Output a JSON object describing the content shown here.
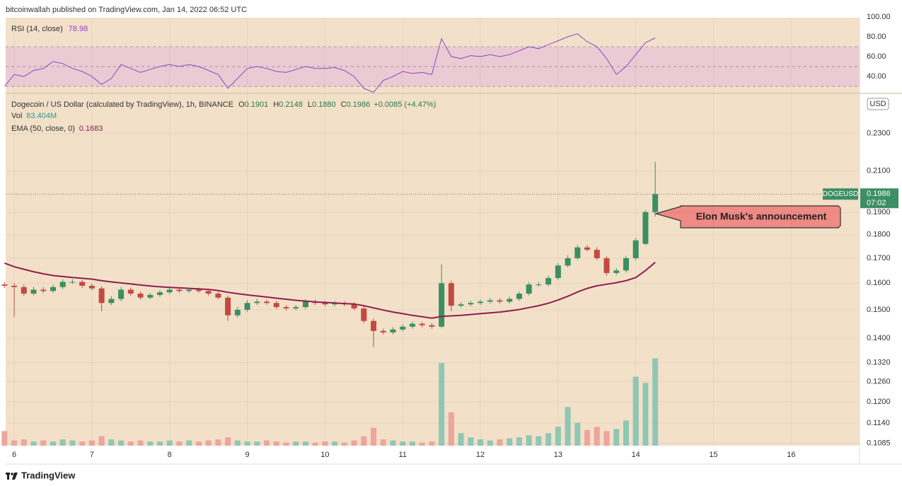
{
  "header": {
    "published": "bitcoinwallah published on TradingView.com, Jan 14, 2022 06:52 UTC"
  },
  "chart_data": {
    "type": "candlestick",
    "title": "Dogecoin / US Dollar (calculated by TradingView), 1h, BINANCE",
    "ohlc_readout": [
      {
        "label": "O",
        "value": "0.1901"
      },
      {
        "label": "H",
        "value": "0.2148"
      },
      {
        "label": "L",
        "value": "0.1880"
      },
      {
        "label": "C",
        "value": "0.1986"
      }
    ],
    "change": "+0.0085 (+4.47%)",
    "symbol": "DOGEUSD",
    "currency": "USD",
    "countdown": "07:02",
    "up_color": "#3b8f63",
    "down_color": "#c24a42",
    "grid": true,
    "log_scale": true,
    "xlim": [
      5.89,
      16.88
    ],
    "xticks": [
      6,
      7,
      8,
      9,
      10,
      11,
      12,
      13,
      14,
      15,
      16
    ],
    "ylim": [
      0.1079,
      0.2535
    ],
    "yticks": [
      0.1085,
      {
        "value": 0.114,
        "label": "0.1140"
      },
      {
        "value": 0.12,
        "label": "0.1200"
      },
      {
        "value": 0.126,
        "label": "0.1260"
      },
      {
        "value": 0.132,
        "label": "0.1320"
      },
      {
        "value": 0.14,
        "label": "0.1400"
      },
      {
        "value": 0.15,
        "label": "0.1500"
      },
      {
        "value": 0.16,
        "label": "0.1600"
      },
      {
        "value": 0.17,
        "label": "0.1700"
      },
      {
        "value": 0.18,
        "label": "0.1800"
      },
      {
        "value": 0.19,
        "label": "0.1900"
      },
      {
        "value": 0.21,
        "label": "0.2100"
      },
      {
        "value": 0.23,
        "label": "0.2300"
      }
    ],
    "x": [
      5.875,
      6,
      6.125,
      6.25,
      6.375,
      6.5,
      6.625,
      6.75,
      6.875,
      7,
      7.125,
      7.25,
      7.375,
      7.5,
      7.625,
      7.75,
      7.875,
      8,
      8.125,
      8.25,
      8.375,
      8.5,
      8.625,
      8.75,
      8.875,
      9,
      9.125,
      9.25,
      9.375,
      9.5,
      9.625,
      9.75,
      9.875,
      10,
      10.125,
      10.25,
      10.375,
      10.5,
      10.625,
      10.75,
      10.875,
      11,
      11.125,
      11.25,
      11.375,
      11.5,
      11.625,
      11.75,
      11.875,
      12,
      12.125,
      12.25,
      12.375,
      12.5,
      12.625,
      12.75,
      12.875,
      13,
      13.125,
      13.25,
      13.375,
      13.5,
      13.625,
      13.75,
      13.875,
      14,
      14.125,
      14.25
    ],
    "open": [
      0.1595,
      0.159,
      0.1585,
      0.156,
      0.1575,
      0.157,
      0.1585,
      0.1605,
      0.1605,
      0.159,
      0.158,
      0.1525,
      0.154,
      0.1575,
      0.156,
      0.1545,
      0.1555,
      0.1565,
      0.1575,
      0.157,
      0.1575,
      0.157,
      0.156,
      0.1545,
      0.148,
      0.15,
      0.1525,
      0.153,
      0.1525,
      0.151,
      0.1505,
      0.151,
      0.153,
      0.1525,
      0.152,
      0.1525,
      0.152,
      0.1505,
      0.146,
      0.1425,
      0.142,
      0.143,
      0.144,
      0.145,
      0.1445,
      0.144,
      0.16,
      0.1515,
      0.152,
      0.1525,
      0.153,
      0.1535,
      0.153,
      0.154,
      0.156,
      0.1595,
      0.1595,
      0.162,
      0.167,
      0.17,
      0.1745,
      0.1735,
      0.17,
      0.164,
      0.165,
      0.17,
      0.176,
      0.1901
    ],
    "high": [
      0.1605,
      0.16,
      0.1595,
      0.1585,
      0.1585,
      0.1595,
      0.1615,
      0.1615,
      0.1612,
      0.1598,
      0.1588,
      0.155,
      0.1585,
      0.1583,
      0.1568,
      0.1563,
      0.1573,
      0.1583,
      0.1583,
      0.1583,
      0.1582,
      0.1578,
      0.1568,
      0.1553,
      0.151,
      0.1535,
      0.154,
      0.1538,
      0.1533,
      0.1518,
      0.1518,
      0.1538,
      0.1538,
      0.1532,
      0.1533,
      0.1532,
      0.1528,
      0.1513,
      0.1468,
      0.1433,
      0.1438,
      0.1448,
      0.1458,
      0.1457,
      0.1453,
      0.1675,
      0.161,
      0.1528,
      0.1533,
      0.1538,
      0.1543,
      0.1543,
      0.1548,
      0.1568,
      0.1605,
      0.1605,
      0.163,
      0.168,
      0.1712,
      0.1755,
      0.1755,
      0.1745,
      0.1708,
      0.166,
      0.171,
      0.1785,
      0.191,
      0.2148
    ],
    "low": [
      0.1582,
      0.1475,
      0.1552,
      0.1553,
      0.1562,
      0.1563,
      0.1578,
      0.1597,
      0.1582,
      0.1572,
      0.1495,
      0.1517,
      0.1532,
      0.1552,
      0.1537,
      0.1538,
      0.1548,
      0.1558,
      0.1563,
      0.1563,
      0.1563,
      0.1553,
      0.1538,
      0.146,
      0.1472,
      0.1493,
      0.1518,
      0.1518,
      0.1503,
      0.1498,
      0.1498,
      0.1503,
      0.1518,
      0.1513,
      0.1513,
      0.1513,
      0.1498,
      0.1452,
      0.137,
      0.1413,
      0.1413,
      0.1423,
      0.1433,
      0.1438,
      0.1433,
      0.1435,
      0.1495,
      0.1508,
      0.1513,
      0.1518,
      0.1523,
      0.1523,
      0.1523,
      0.1533,
      0.1553,
      0.1587,
      0.1588,
      0.1612,
      0.1662,
      0.1693,
      0.1728,
      0.1692,
      0.163,
      0.1632,
      0.1642,
      0.1692,
      0.1755,
      0.188
    ],
    "close": [
      0.159,
      0.1585,
      0.156,
      0.1575,
      0.157,
      0.1585,
      0.1605,
      0.1605,
      0.159,
      0.158,
      0.1525,
      0.154,
      0.1575,
      0.156,
      0.1545,
      0.1555,
      0.1565,
      0.1575,
      0.157,
      0.1575,
      0.157,
      0.156,
      0.1545,
      0.148,
      0.15,
      0.1525,
      0.153,
      0.1525,
      0.151,
      0.1505,
      0.151,
      0.153,
      0.1525,
      0.152,
      0.1525,
      0.152,
      0.1505,
      0.146,
      0.1425,
      0.142,
      0.143,
      0.144,
      0.145,
      0.1445,
      0.144,
      0.16,
      0.1515,
      0.152,
      0.1525,
      0.153,
      0.1535,
      0.153,
      0.154,
      0.156,
      0.1595,
      0.1595,
      0.162,
      0.167,
      0.17,
      0.1745,
      0.1735,
      0.17,
      0.164,
      0.165,
      0.17,
      0.1775,
      0.1901,
      0.1986
    ],
    "ema": {
      "name": "EMA (50, close, 0)",
      "color": "#8e1f4f",
      "values": [
        0.168,
        0.1665,
        0.1655,
        0.1645,
        0.1637,
        0.163,
        0.1626,
        0.1622,
        0.1619,
        0.1616,
        0.161,
        0.1605,
        0.1601,
        0.1597,
        0.1593,
        0.1589,
        0.1586,
        0.1584,
        0.1582,
        0.158,
        0.1578,
        0.1576,
        0.1572,
        0.1565,
        0.156,
        0.1555,
        0.1551,
        0.1547,
        0.1543,
        0.1539,
        0.1535,
        0.1532,
        0.1529,
        0.1527,
        0.1525,
        0.1523,
        0.1521,
        0.1515,
        0.1507,
        0.1499,
        0.1492,
        0.1486,
        0.148,
        0.1475,
        0.147,
        0.1476,
        0.1478,
        0.148,
        0.1483,
        0.1486,
        0.1489,
        0.1492,
        0.1496,
        0.1501,
        0.1508,
        0.1515,
        0.1524,
        0.1536,
        0.155,
        0.1566,
        0.158,
        0.159,
        0.1596,
        0.1602,
        0.161,
        0.1622,
        0.165,
        0.1683
      ]
    },
    "volume": {
      "name": "Vol",
      "last_label": "83.404M",
      "ylim": [
        0,
        90
      ],
      "up_color": "#8fc7b4",
      "down_color": "#eda59c",
      "values": [
        14,
        5,
        6,
        4,
        5,
        4,
        6,
        5,
        4,
        5,
        9,
        6,
        5,
        4,
        5,
        4,
        4,
        5,
        4,
        5,
        4,
        5,
        6,
        8,
        5,
        4,
        4,
        5,
        4,
        3,
        4,
        4,
        3,
        4,
        4,
        3,
        5,
        9,
        17,
        6,
        5,
        4,
        4,
        3,
        4,
        79,
        32,
        12,
        8,
        6,
        5,
        6,
        7,
        8,
        10,
        9,
        12,
        18,
        37,
        22,
        15,
        18,
        14,
        16,
        24,
        66,
        60,
        83.404
      ]
    },
    "rsi": {
      "name": "RSI (14, close)",
      "color": "#8e44c7",
      "band_color": "#e8c6d6",
      "band": [
        30,
        70
      ],
      "midline": 50,
      "ylim": [
        22.9,
        99.3
      ],
      "yticks": [
        {
          "value": 40,
          "label": "40.00"
        },
        {
          "value": 60,
          "label": "60.00"
        },
        {
          "value": 80,
          "label": "80.00"
        },
        {
          "value": 100,
          "label": "100.00"
        }
      ],
      "values": [
        30,
        42,
        40,
        46,
        48,
        55,
        53,
        48,
        45,
        40,
        32,
        38,
        52,
        48,
        44,
        47,
        50,
        52,
        50,
        52,
        50,
        46,
        42,
        28,
        38,
        48,
        50,
        48,
        45,
        44,
        47,
        50,
        48,
        48,
        49,
        46,
        40,
        28,
        24,
        36,
        40,
        45,
        43,
        44,
        42,
        78,
        60,
        58,
        61,
        60,
        62,
        60,
        62,
        66,
        70,
        68,
        72,
        76,
        80,
        83,
        75,
        70,
        58,
        42,
        50,
        62,
        74,
        78.98
      ]
    },
    "annotation": {
      "text": "Elon Musk's announcement",
      "color": "#f08a84"
    }
  },
  "footer": {
    "brand": "TradingView"
  }
}
